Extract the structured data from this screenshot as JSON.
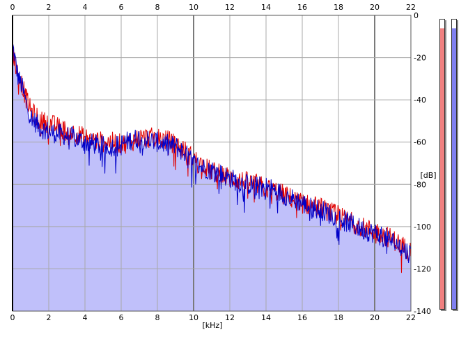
{
  "chart_data": {
    "type": "area",
    "xlabel": "[kHz]",
    "ylabel": "[dB]",
    "xlim": [
      0,
      22
    ],
    "ylim": [
      -140,
      0
    ],
    "x_ticks": [
      "0",
      "2",
      "4",
      "6",
      "8",
      "10",
      "12",
      "14",
      "16",
      "18",
      "20",
      "22"
    ],
    "y_ticks": [
      "0",
      "-20",
      "-40",
      "-60",
      "-80",
      "-100",
      "-120",
      "-140"
    ],
    "grid": true,
    "fill_color": "#c0c0fa",
    "series": [
      {
        "color": "#e00000",
        "x": [
          0,
          0.1,
          0.2,
          0.3,
          0.5,
          0.7,
          1,
          1.5,
          2,
          2.5,
          3,
          3.5,
          4,
          4.5,
          5,
          5.5,
          6,
          6.5,
          7,
          7.5,
          8,
          8.5,
          9,
          9.5,
          10,
          10.5,
          11,
          11.5,
          12,
          12.5,
          13,
          13.5,
          14,
          14.5,
          15,
          15.5,
          16,
          16.5,
          17,
          17.5,
          18,
          18.5,
          19,
          19.5,
          20,
          20.5,
          21,
          21.5,
          22
        ],
        "y": [
          -15,
          -20,
          -25,
          -28,
          -32,
          -38,
          -45,
          -50,
          -51,
          -53,
          -55,
          -56,
          -58,
          -59,
          -60,
          -60,
          -61,
          -60,
          -58,
          -58,
          -58,
          -59,
          -61,
          -64,
          -68,
          -71,
          -74,
          -75,
          -77,
          -78,
          -79,
          -80,
          -82,
          -83,
          -85,
          -87,
          -89,
          -90,
          -91,
          -93,
          -95,
          -97,
          -99,
          -101,
          -102,
          -104,
          -106,
          -109,
          -112
        ]
      },
      {
        "color": "#0000c8",
        "x": [
          0,
          0.1,
          0.2,
          0.3,
          0.5,
          0.7,
          1,
          1.5,
          2,
          2.5,
          3,
          3.5,
          4,
          4.5,
          5,
          5.5,
          6,
          6.5,
          7,
          7.5,
          8,
          8.5,
          9,
          9.5,
          10,
          10.5,
          11,
          11.5,
          12,
          12.5,
          13,
          13.5,
          14,
          14.5,
          15,
          15.5,
          16,
          16.5,
          17,
          17.5,
          18,
          18.5,
          19,
          19.5,
          20,
          20.5,
          21,
          21.5,
          22
        ],
        "y": [
          -14,
          -19,
          -24,
          -29,
          -33,
          -40,
          -48,
          -53,
          -55,
          -56,
          -57,
          -58,
          -60,
          -61,
          -62,
          -62,
          -61,
          -59,
          -58,
          -59,
          -60,
          -61,
          -62,
          -65,
          -70,
          -72,
          -73,
          -75,
          -77,
          -79,
          -80,
          -81,
          -81,
          -83,
          -85,
          -87,
          -89,
          -91,
          -92,
          -94,
          -96,
          -98,
          -100,
          -102,
          -103,
          -105,
          -107,
          -110,
          -113
        ]
      }
    ]
  },
  "meters": {
    "left_color": "#f08080",
    "right_color": "#8080f0",
    "left_level": 0.97,
    "right_level": 0.97
  }
}
